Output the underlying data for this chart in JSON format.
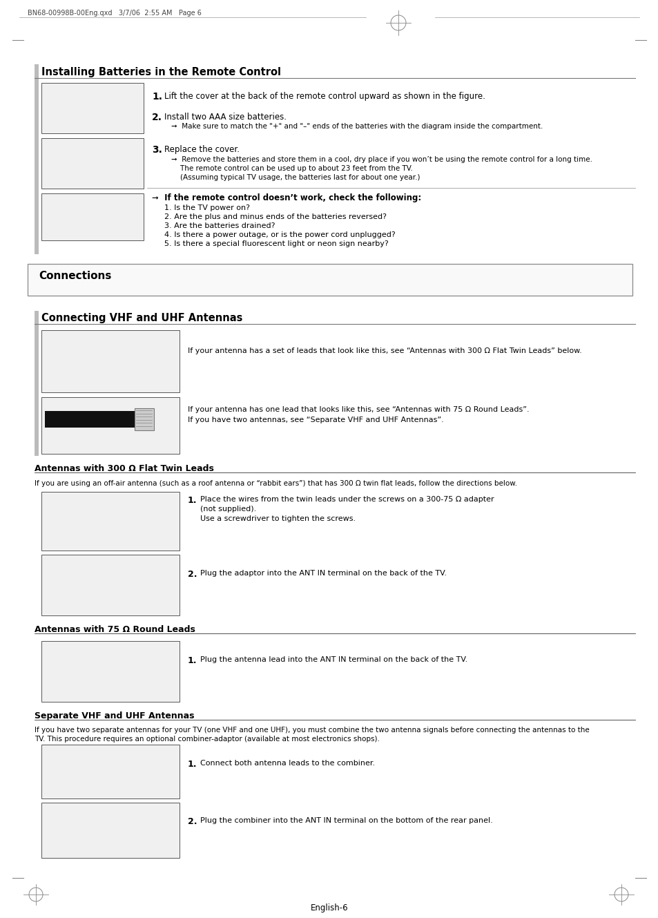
{
  "page_header": "BN68-00998B-00Eng.qxd   3/7/06  2:55 AM   Page 6",
  "page_footer": "English-6",
  "section1_title": "Installing Batteries in the Remote Control",
  "section1_sub1": "➞  Make sure to match the \"+\" and \"–\" ends of the batteries with the diagram inside the compartment.",
  "section1_sub2": "➞  Remove the batteries and store them in a cool, dry place if you won’t be using the remote control for a long time.",
  "section1_sub3": "    The remote control can be used up to about 23 feet from the TV.",
  "section1_sub4": "    (Assuming typical TV usage, the batteries last for about one year.)",
  "section1_warn_title": "➞  If the remote control doesn’t work, check the following:",
  "section1_warn_items": [
    "1. Is the TV power on?",
    "2. Are the plus and minus ends of the batteries reversed?",
    "3. Are the batteries drained?",
    "4. Is there a power outage, or is the power cord unplugged?",
    "5. Is there a special fluorescent light or neon sign nearby?"
  ],
  "section2_title": "Connections",
  "section3_title": "Connecting VHF and UHF Antennas",
  "section3_text1": "If your antenna has a set of leads that look like this, see “Antennas with 300 Ω Flat Twin Leads” below.",
  "section3_text2a": "If your antenna has one lead that looks like this, see “Antennas with 75 Ω Round Leads”.",
  "section3_text2b": "If you have two antennas, see “Separate VHF and UHF Antennas”.",
  "section4_title": "Antennas with 300 Ω Flat Twin Leads",
  "section4_intro": "If you are using an off-air antenna (such as a roof antenna or “rabbit ears”) that has 300 Ω twin flat leads, follow the directions below.",
  "section4_step1a": "Place the wires from the twin leads under the screws on a 300-75 Ω adapter",
  "section4_step1b": "(not supplied).",
  "section4_step1c": "Use a screwdriver to tighten the screws.",
  "section4_step2": "Plug the adaptor into the ANT IN terminal on the back of the TV.",
  "section5_title": "Antennas with 75 Ω Round Leads",
  "section5_step1": "Plug the antenna lead into the ANT IN terminal on the back of the TV.",
  "section6_title": "Separate VHF and UHF Antennas",
  "section6_intro1": "If you have two separate antennas for your TV (one VHF and one UHF), you must combine the two antenna signals before connecting the antennas to the",
  "section6_intro2": "TV. This procedure requires an optional combiner-adaptor (available at most electronics shops).",
  "section6_step1": "Connect both antenna leads to the combiner.",
  "section6_step2": "Plug the combiner into the ANT IN terminal on the bottom of the rear panel.",
  "bg_color": "#ffffff"
}
